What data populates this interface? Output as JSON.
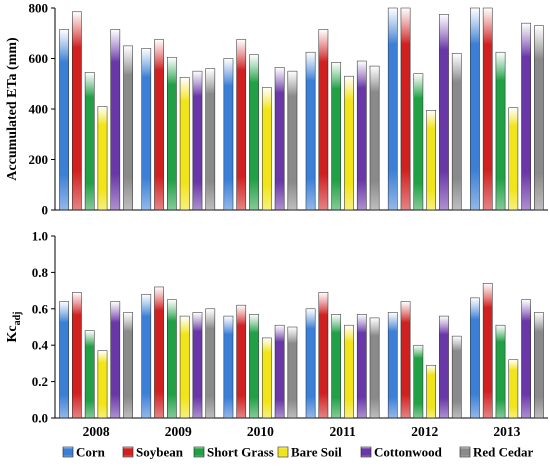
{
  "chart_data": [
    {
      "type": "bar",
      "ylabel": "Accumulated ETa (mm)",
      "ylim": [
        0,
        800
      ],
      "yticks": [
        "0",
        "200",
        "400",
        "600",
        "800"
      ],
      "categories": [
        "2008",
        "2009",
        "2010",
        "2011",
        "2012",
        "2013"
      ],
      "series": [
        {
          "name": "Corn",
          "color": "#3b7fd6",
          "values": [
            715,
            640,
            600,
            625,
            800,
            800
          ]
        },
        {
          "name": "Soybean",
          "color": "#d02020",
          "values": [
            785,
            675,
            675,
            715,
            800,
            800
          ]
        },
        {
          "name": "Short Grass",
          "color": "#21a045",
          "values": [
            545,
            605,
            615,
            585,
            540,
            625
          ]
        },
        {
          "name": "Bare Soil",
          "color": "#f2e41a",
          "values": [
            410,
            525,
            485,
            530,
            395,
            405
          ]
        },
        {
          "name": "Cottonwood",
          "color": "#6a37a8",
          "values": [
            715,
            550,
            565,
            590,
            775,
            740
          ]
        },
        {
          "name": "Red Cedar",
          "color": "#8a8a8a",
          "values": [
            650,
            560,
            550,
            570,
            620,
            730
          ]
        }
      ],
      "grid": false,
      "legend": "bottom"
    },
    {
      "type": "bar",
      "ylabel": "Kc",
      "ylabel_sub": "adj",
      "ylim": [
        0,
        1.0
      ],
      "yticks": [
        "0.0",
        "0.2",
        "0.4",
        "0.6",
        "0.8",
        "1.0"
      ],
      "categories": [
        "2008",
        "2009",
        "2010",
        "2011",
        "2012",
        "2013"
      ],
      "series": [
        {
          "name": "Corn",
          "color": "#3b7fd6",
          "values": [
            0.64,
            0.68,
            0.56,
            0.6,
            0.58,
            0.66
          ]
        },
        {
          "name": "Soybean",
          "color": "#d02020",
          "values": [
            0.69,
            0.72,
            0.62,
            0.69,
            0.64,
            0.74
          ]
        },
        {
          "name": "Short Grass",
          "color": "#21a045",
          "values": [
            0.48,
            0.65,
            0.57,
            0.57,
            0.4,
            0.51
          ]
        },
        {
          "name": "Bare Soil",
          "color": "#f2e41a",
          "values": [
            0.37,
            0.56,
            0.44,
            0.51,
            0.29,
            0.32
          ]
        },
        {
          "name": "Cottonwood",
          "color": "#6a37a8",
          "values": [
            0.64,
            0.58,
            0.51,
            0.57,
            0.56,
            0.65
          ]
        },
        {
          "name": "Red Cedar",
          "color": "#8a8a8a",
          "values": [
            0.58,
            0.6,
            0.5,
            0.55,
            0.45,
            0.58
          ]
        }
      ],
      "grid": false,
      "legend": "bottom"
    }
  ],
  "legend": [
    "Corn",
    "Soybean",
    "Short Grass",
    "Bare Soil",
    "Cottonwood",
    "Red Cedar"
  ]
}
